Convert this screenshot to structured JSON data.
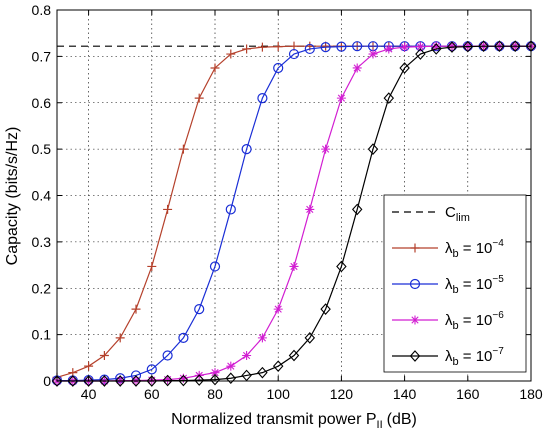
{
  "chart_data": {
    "type": "line",
    "xlabel": "Normalized transmit power P",
    "xlabel_subscript": "II",
    "xlabel_unit": "(dB)",
    "ylabel": "Capacity (bits/s/Hz)",
    "xlim": [
      30,
      180
    ],
    "ylim": [
      0,
      0.8
    ],
    "xticks": [
      40,
      60,
      80,
      100,
      120,
      140,
      160,
      180
    ],
    "yticks": [
      0,
      0.1,
      0.2,
      0.3,
      0.4,
      0.5,
      0.6,
      0.7,
      0.8
    ],
    "grid": true,
    "legend_position": "lower-right",
    "reference_line": {
      "name": "C",
      "name_subscript": "lim",
      "value": 0.722,
      "style": "dashed",
      "color": "#000000"
    },
    "series": [
      {
        "name": "λ",
        "name_subscript": "b",
        "name_suffix": " = 10",
        "name_superscript": "−4",
        "color": "#b5412c",
        "marker": "plus",
        "x": [
          30,
          35,
          40,
          45,
          50,
          55,
          60,
          65,
          70,
          75,
          80,
          85,
          90,
          95,
          100,
          105,
          110,
          115,
          120,
          125,
          130,
          135,
          140,
          145,
          150,
          155,
          160,
          165,
          170,
          175,
          180
        ],
        "y": [
          0.008,
          0.018,
          0.032,
          0.055,
          0.093,
          0.155,
          0.247,
          0.37,
          0.5,
          0.61,
          0.675,
          0.705,
          0.716,
          0.72,
          0.721,
          0.722,
          0.722,
          0.722,
          0.722,
          0.722,
          0.722,
          0.722,
          0.722,
          0.722,
          0.722,
          0.722,
          0.722,
          0.722,
          0.722,
          0.722,
          0.722
        ]
      },
      {
        "name": "λ",
        "name_subscript": "b",
        "name_suffix": " = 10",
        "name_superscript": "−5",
        "color": "#1a2ed6",
        "marker": "circle",
        "x": [
          30,
          35,
          40,
          45,
          50,
          55,
          60,
          65,
          70,
          75,
          80,
          85,
          90,
          95,
          100,
          105,
          110,
          115,
          120,
          125,
          130,
          135,
          140,
          145,
          150,
          155,
          160,
          165,
          170,
          175,
          180
        ],
        "y": [
          0.001,
          0.001,
          0.002,
          0.003,
          0.006,
          0.012,
          0.025,
          0.055,
          0.093,
          0.155,
          0.247,
          0.37,
          0.5,
          0.61,
          0.675,
          0.705,
          0.716,
          0.72,
          0.721,
          0.722,
          0.722,
          0.722,
          0.722,
          0.722,
          0.722,
          0.722,
          0.722,
          0.722,
          0.722,
          0.722,
          0.722
        ]
      },
      {
        "name": "λ",
        "name_subscript": "b",
        "name_suffix": " = 10",
        "name_superscript": "−6",
        "color": "#d21ed2",
        "marker": "asterisk",
        "x": [
          30,
          35,
          40,
          45,
          50,
          55,
          60,
          65,
          70,
          75,
          80,
          85,
          90,
          95,
          100,
          105,
          110,
          115,
          120,
          125,
          130,
          135,
          140,
          145,
          150,
          155,
          160,
          165,
          170,
          175,
          180
        ],
        "y": [
          0.0,
          0.0,
          0.0,
          0.0,
          0.001,
          0.001,
          0.002,
          0.003,
          0.006,
          0.012,
          0.018,
          0.032,
          0.055,
          0.093,
          0.155,
          0.247,
          0.37,
          0.5,
          0.61,
          0.675,
          0.705,
          0.716,
          0.72,
          0.721,
          0.722,
          0.722,
          0.722,
          0.722,
          0.722,
          0.722,
          0.722
        ]
      },
      {
        "name": "λ",
        "name_subscript": "b",
        "name_suffix": " = 10",
        "name_superscript": "−7",
        "color": "#000000",
        "marker": "diamond",
        "x": [
          30,
          35,
          40,
          45,
          50,
          55,
          60,
          65,
          70,
          75,
          80,
          85,
          90,
          95,
          100,
          105,
          110,
          115,
          120,
          125,
          130,
          135,
          140,
          145,
          150,
          155,
          160,
          165,
          170,
          175,
          180
        ],
        "y": [
          0.0,
          0.0,
          0.0,
          0.0,
          0.0,
          0.0,
          0.0,
          0.001,
          0.001,
          0.002,
          0.003,
          0.006,
          0.012,
          0.018,
          0.032,
          0.055,
          0.093,
          0.155,
          0.247,
          0.37,
          0.5,
          0.61,
          0.675,
          0.705,
          0.716,
          0.72,
          0.721,
          0.722,
          0.722,
          0.722,
          0.722
        ]
      }
    ]
  }
}
